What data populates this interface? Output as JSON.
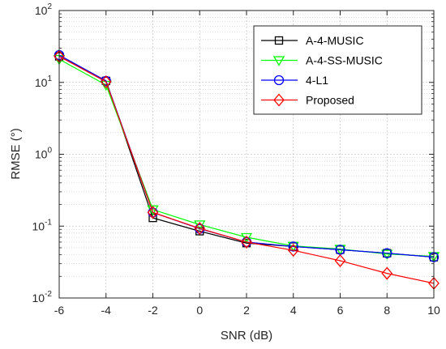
{
  "chart_data": {
    "type": "line",
    "title": "",
    "xlabel": "SNR (dB)",
    "ylabel": "RMSE (°)",
    "x": [
      -6,
      -4,
      -2,
      0,
      2,
      4,
      6,
      8,
      10
    ],
    "xlim": [
      -6,
      10
    ],
    "ylim": [
      0.01,
      100
    ],
    "yscale": "log",
    "x_ticks": [
      -6,
      -4,
      -2,
      0,
      2,
      4,
      6,
      8,
      10
    ],
    "y_ticks": [
      {
        "value": 0.01,
        "base": "10",
        "exp": "-2"
      },
      {
        "value": 0.1,
        "base": "10",
        "exp": "-1"
      },
      {
        "value": 1,
        "base": "10",
        "exp": "0"
      },
      {
        "value": 10,
        "base": "10",
        "exp": "1"
      },
      {
        "value": 100,
        "base": "10",
        "exp": "2"
      }
    ],
    "grid": true,
    "minor_grid": true,
    "legend_position": "top-right",
    "series": [
      {
        "name": "A-4-MUSIC",
        "color": "#000000",
        "marker": "square",
        "values": [
          23,
          10.5,
          0.13,
          0.085,
          0.058,
          0.052,
          0.047,
          0.042,
          0.037
        ]
      },
      {
        "name": "A-4-SS-MUSIC",
        "color": "#00ff00",
        "marker": "triangle-down",
        "values": [
          21,
          9.2,
          0.17,
          0.105,
          0.07,
          0.053,
          0.048,
          0.041,
          0.038
        ]
      },
      {
        "name": "4-L1",
        "color": "#0000ff",
        "marker": "circle",
        "values": [
          24,
          10.5,
          0.155,
          0.092,
          0.06,
          0.052,
          0.047,
          0.042,
          0.037
        ]
      },
      {
        "name": "Proposed",
        "color": "#ff0000",
        "marker": "diamond",
        "values": [
          23,
          10.2,
          0.155,
          0.093,
          0.06,
          0.046,
          0.033,
          0.022,
          0.016
        ]
      }
    ]
  }
}
